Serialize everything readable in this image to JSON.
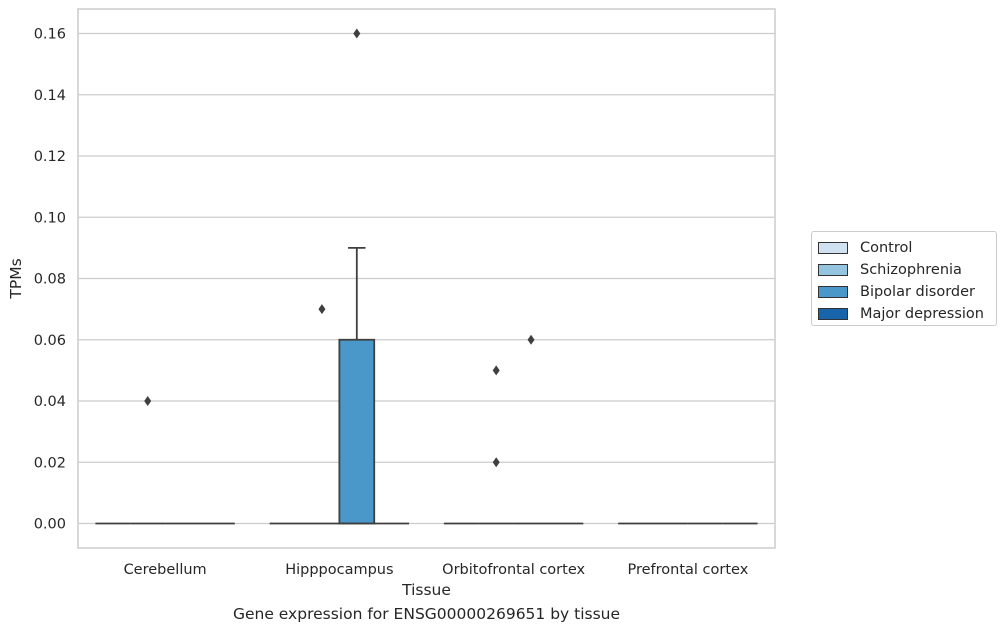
{
  "caption": "Gene expression for ENSG00000269651 by tissue",
  "chart_data": {
    "type": "box",
    "title": "",
    "xlabel": "Tissue",
    "ylabel": "TPMs",
    "categories": [
      "Cerebellum",
      "Hipppocampus",
      "Orbitofrontal cortex",
      "Prefrontal cortex"
    ],
    "ylim": [
      -0.008,
      0.168
    ],
    "yticks": [
      0.0,
      0.02,
      0.04,
      0.06,
      0.08,
      0.1,
      0.12,
      0.14,
      0.16
    ],
    "ytick_labels": [
      "0.00",
      "0.02",
      "0.04",
      "0.06",
      "0.08",
      "0.10",
      "0.12",
      "0.14",
      "0.16"
    ],
    "grid": true,
    "legend_position": "right",
    "series": [
      {
        "name": "Control",
        "color": "#d0e1f2",
        "boxes": [
          {
            "category": "Cerebellum",
            "q1": 0,
            "median": 0,
            "q3": 0,
            "whisker_low": 0,
            "whisker_high": 0,
            "outliers": []
          },
          {
            "category": "Hipppocampus",
            "q1": 0,
            "median": 0,
            "q3": 0,
            "whisker_low": 0,
            "whisker_high": 0,
            "outliers": []
          },
          {
            "category": "Orbitofrontal cortex",
            "q1": 0,
            "median": 0,
            "q3": 0,
            "whisker_low": 0,
            "whisker_high": 0,
            "outliers": []
          },
          {
            "category": "Prefrontal cortex",
            "q1": 0,
            "median": 0,
            "q3": 0,
            "whisker_low": 0,
            "whisker_high": 0,
            "outliers": []
          }
        ]
      },
      {
        "name": "Schizophrenia",
        "color": "#94c4df",
        "boxes": [
          {
            "category": "Cerebellum",
            "q1": 0,
            "median": 0,
            "q3": 0,
            "whisker_low": 0,
            "whisker_high": 0,
            "outliers": [
              0.04
            ]
          },
          {
            "category": "Hipppocampus",
            "q1": 0,
            "median": 0,
            "q3": 0,
            "whisker_low": 0,
            "whisker_high": 0,
            "outliers": [
              0.07
            ]
          },
          {
            "category": "Orbitofrontal cortex",
            "q1": 0,
            "median": 0,
            "q3": 0,
            "whisker_low": 0,
            "whisker_high": 0,
            "outliers": [
              0.02,
              0.05
            ]
          },
          {
            "category": "Prefrontal cortex",
            "q1": 0,
            "median": 0,
            "q3": 0,
            "whisker_low": 0,
            "whisker_high": 0,
            "outliers": []
          }
        ]
      },
      {
        "name": "Bipolar disorder",
        "color": "#4a98c9",
        "boxes": [
          {
            "category": "Cerebellum",
            "q1": 0,
            "median": 0,
            "q3": 0,
            "whisker_low": 0,
            "whisker_high": 0,
            "outliers": []
          },
          {
            "category": "Hipppocampus",
            "q1": 0,
            "median": 0,
            "q3": 0.06,
            "whisker_low": 0,
            "whisker_high": 0.09,
            "outliers": [
              0.16
            ]
          },
          {
            "category": "Orbitofrontal cortex",
            "q1": 0,
            "median": 0,
            "q3": 0,
            "whisker_low": 0,
            "whisker_high": 0,
            "outliers": [
              0.06
            ]
          },
          {
            "category": "Prefrontal cortex",
            "q1": 0,
            "median": 0,
            "q3": 0,
            "whisker_low": 0,
            "whisker_high": 0,
            "outliers": []
          }
        ]
      },
      {
        "name": "Major depression",
        "color": "#1764ab",
        "boxes": [
          {
            "category": "Cerebellum",
            "q1": 0,
            "median": 0,
            "q3": 0,
            "whisker_low": 0,
            "whisker_high": 0,
            "outliers": []
          },
          {
            "category": "Hipppocampus",
            "q1": 0,
            "median": 0,
            "q3": 0,
            "whisker_low": 0,
            "whisker_high": 0,
            "outliers": []
          },
          {
            "category": "Orbitofrontal cortex",
            "q1": 0,
            "median": 0,
            "q3": 0,
            "whisker_low": 0,
            "whisker_high": 0,
            "outliers": []
          },
          {
            "category": "Prefrontal cortex",
            "q1": 0,
            "median": 0,
            "q3": 0,
            "whisker_low": 0,
            "whisker_high": 0,
            "outliers": []
          }
        ]
      }
    ]
  }
}
